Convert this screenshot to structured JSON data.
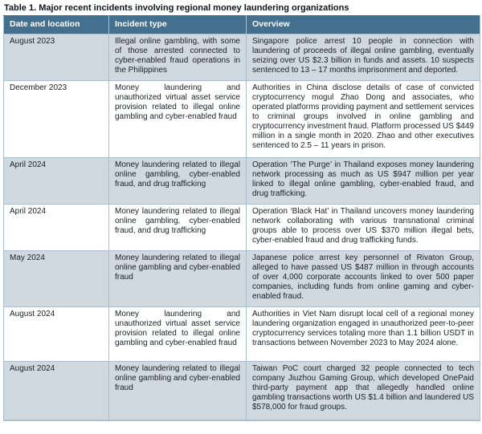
{
  "title": "Table 1. Major recent incidents involving regional money laundering organizations",
  "colors": {
    "header_background": "#44708f",
    "header_text": "#ffffff",
    "stripe_row_background": "#d0d8e0",
    "plain_row_background": "#ffffff",
    "border": "#a9becf",
    "body_text": "#1a1f26"
  },
  "table": {
    "headers": [
      "Date and location",
      "Incident type",
      "Overview"
    ],
    "rows": [
      {
        "date": "August 2023",
        "incident": "Illegal online gambling, with some of those arrested connected to cyber-enabled fraud operations in the Philippines",
        "overview": "Singapore police arrest 10 people in connection with laundering of proceeds of illegal online gambling, eventually seizing over US $2.3 billion in funds and assets. 10 suspects sentenced to 13 – 17 months imprisonment and deported."
      },
      {
        "date": "December 2023",
        "incident": "Money laundering and unauthorized virtual asset service provision related to illegal online gambling and cyber-enabled fraud",
        "overview": "Authorities in China disclose details of case of convicted cryptocurrency mogul Zhao Dong and associates, who operated platforms providing payment and settlement services to criminal groups involved in online gambling and cryptocurrency investment fraud. Platform processed US $449 million in a single month in 2020. Zhao and other executives sentenced to 2.5 – 11 years in prison."
      },
      {
        "date": "April 2024",
        "incident": "Money laundering related to illegal online gambling, cyber-enabled fraud, and drug trafficking",
        "overview": "Operation ‘The Purge’ in Thailand exposes money laundering network processing as much as US $947 million per year linked to illegal online gambling, cyber-enabled fraud, and drug trafficking."
      },
      {
        "date": "April 2024",
        "incident": "Money laundering related to illegal online gambling, cyber-enabled fraud, and drug trafficking",
        "overview": "Operation ‘Black Hat’ in Thailand uncovers money laundering network collaborating with various transnational criminal groups able to process over US $370 million illegal bets, cyber-enabled fraud and drug trafficking funds."
      },
      {
        "date": "May 2024",
        "incident": "Money laundering related to illegal online gambling and cyber-enabled fraud",
        "overview": "Japanese police arrest key personnel of Rivaton Group, alleged to have passed US $487 million in through accounts of over 4,000 corporate accounts linked to over 500 paper companies, including funds from online gaming and cyber-enabled fraud."
      },
      {
        "date": "August 2024",
        "incident": "Money laundering and unauthorized virtual asset service provision related to illegal online gambling and cyber-enabled fraud",
        "overview": "Authorities in Viet Nam disrupt local cell of a regional money laundering organization engaged in unauthorized peer-to-peer cryptocurrency services totaling more than 1.1 billion USDT in transactions between November 2023 to May 2024 alone."
      },
      {
        "date": "August 2024",
        "incident": "Money laundering related to illegal online gambling and cyber-enabled fraud",
        "overview": "Taiwan PoC court charged 32 people connected to tech company Jiuzhou Gaming Group, which developed OnePaid third-party payment app that allegedly handled online gambling transactions worth US $1.4 billion and laundered US $578,000 for fraud groups."
      }
    ]
  }
}
